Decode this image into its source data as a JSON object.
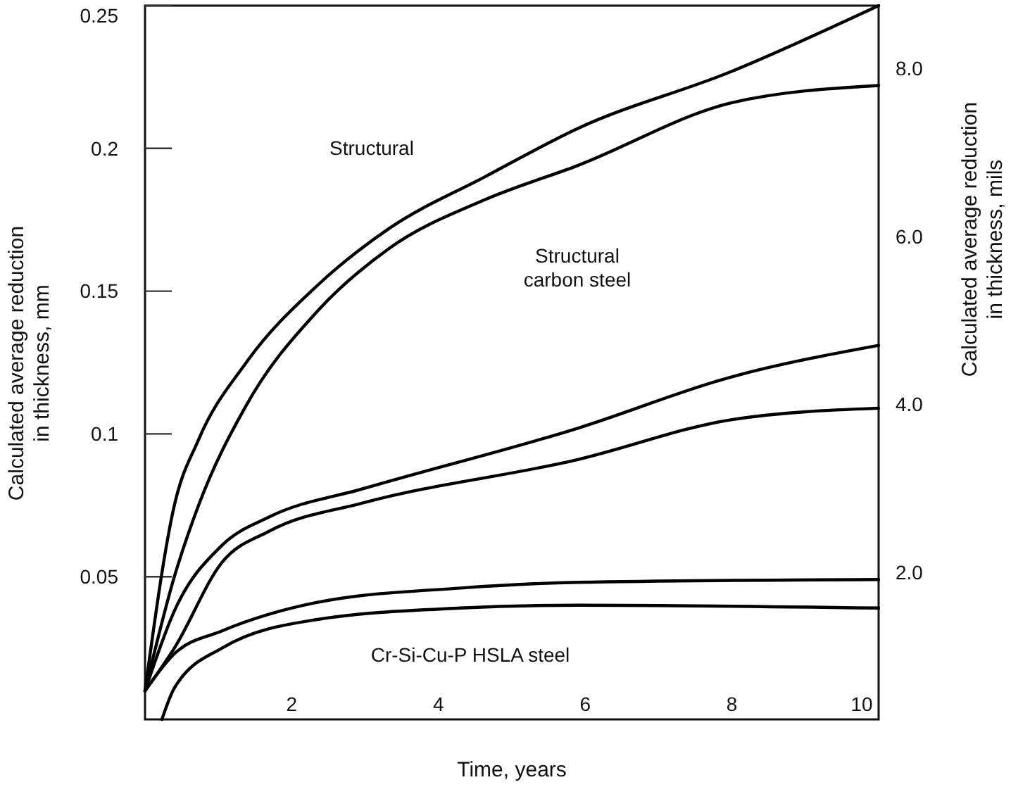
{
  "chart_data": {
    "type": "line",
    "xlabel": "Time, years",
    "ylabel": "Calculated average reduction\nin thickness, mm",
    "y2label": "Calculated average reduction\nin thickness, mils",
    "xlim": [
      0,
      10
    ],
    "ylim": [
      0,
      0.25
    ],
    "y2lim": [
      0.25,
      8.75
    ],
    "xticks": [
      2,
      4,
      6,
      8,
      10
    ],
    "yticks": [
      0.05,
      0.1,
      0.15,
      0.2,
      0.25
    ],
    "y2ticks": [
      {
        "value": 2,
        "label": "2.0"
      },
      {
        "value": 4,
        "label": "4.0"
      },
      {
        "value": 6,
        "label": "6.0"
      },
      {
        "value": 8,
        "label": "8.0"
      }
    ],
    "grid": false,
    "marker": "none",
    "line_style": "solid",
    "series": [
      {
        "color": "#000000",
        "x": [
          0,
          0.4,
          0.73,
          1.38,
          2.35,
          3.33,
          4.63,
          5.9,
          8,
          10
        ],
        "values": [
          0.01,
          0.075,
          0.098,
          0.125,
          0.152,
          0.172,
          0.19,
          0.207,
          0.227,
          0.25
        ]
      },
      {
        "color": "#000000",
        "x": [
          0,
          0.4,
          0.73,
          1.38,
          2.35,
          3.33,
          4.63,
          5.9,
          8,
          10
        ],
        "values": [
          0.01,
          0.05,
          0.075,
          0.11,
          0.143,
          0.165,
          0.182,
          0.194,
          0.216,
          0.222
        ]
      },
      {
        "color": "#000000",
        "x": [
          0,
          0.4,
          1.05,
          1.7,
          3,
          5.9,
          8,
          10
        ],
        "values": [
          0.01,
          0.038,
          0.061,
          0.071,
          0.081,
          0.102,
          0.12,
          0.131
        ]
      },
      {
        "color": "#000000",
        "x": [
          0,
          0.4,
          1.05,
          1.7,
          3,
          5.9,
          8,
          10
        ],
        "values": [
          0.01,
          0.025,
          0.055,
          0.066,
          0.076,
          0.091,
          0.105,
          0.109
        ]
      },
      {
        "color": "#000000",
        "x": [
          0,
          0.4,
          1.05,
          2.35,
          4.3,
          5.9,
          10
        ],
        "values": [
          0.01,
          0.023,
          0.031,
          0.041,
          0.046,
          0.048,
          0.049
        ]
      },
      {
        "color": "#000000",
        "x": [
          0.23,
          0.4,
          1.05,
          2.35,
          4.3,
          5.9,
          10
        ],
        "values": [
          0,
          0.011,
          0.025,
          0.035,
          0.039,
          0.04,
          0.039
        ]
      }
    ],
    "annotations": [
      "Structural",
      "Structural\ncarbon steel",
      "Cr-Si-Cu-P HSLA steel"
    ]
  }
}
